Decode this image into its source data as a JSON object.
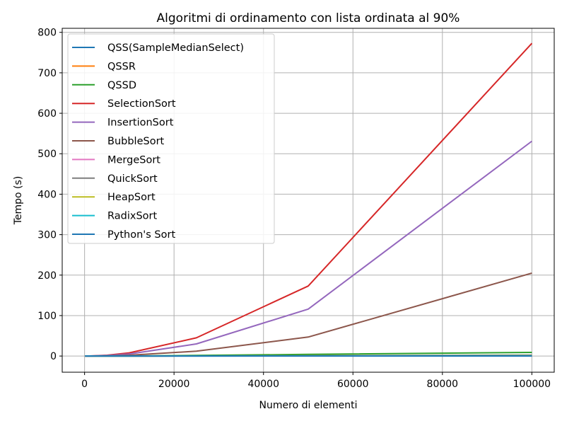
{
  "chart_data": {
    "type": "line",
    "title": "Algoritmi di ordinamento con lista ordinata al 90%",
    "xlabel": "Numero di elementi",
    "ylabel": "Tempo (s)",
    "xlim": [
      -5000,
      105000
    ],
    "ylim": [
      -40,
      810
    ],
    "xticks": [
      0,
      20000,
      40000,
      60000,
      80000,
      100000
    ],
    "yticks": [
      0,
      100,
      200,
      300,
      400,
      500,
      600,
      700,
      800
    ],
    "xtick_labels": [
      "0",
      "20000",
      "40000",
      "60000",
      "80000",
      "100000"
    ],
    "ytick_labels": [
      "0",
      "100",
      "200",
      "300",
      "400",
      "500",
      "600",
      "700",
      "800"
    ],
    "grid": true,
    "legend_position": "top-left",
    "x": [
      100,
      1000,
      5000,
      10000,
      25000,
      50000,
      100000
    ],
    "series": [
      {
        "name": "QSS(SampleMedianSelect)",
        "color": "#1f77b4",
        "values": [
          0,
          0,
          0.02,
          0.05,
          0.15,
          0.3,
          0.6
        ]
      },
      {
        "name": "QSSR",
        "color": "#ff7f0e",
        "values": [
          0,
          0.01,
          0.05,
          0.1,
          0.3,
          0.6,
          1.2
        ]
      },
      {
        "name": "QSSD",
        "color": "#2ca02c",
        "values": [
          0,
          0.01,
          0.1,
          0.3,
          1.5,
          4,
          9
        ]
      },
      {
        "name": "SelectionSort",
        "color": "#d62728",
        "values": [
          0,
          0.08,
          2,
          8,
          45,
          173,
          773
        ]
      },
      {
        "name": "InsertionSort",
        "color": "#9467bd",
        "values": [
          0,
          0.05,
          1.5,
          5,
          30,
          116,
          531
        ]
      },
      {
        "name": "BubbleSort",
        "color": "#8c564b",
        "values": [
          0,
          0.02,
          0.5,
          2,
          12,
          47,
          205
        ]
      },
      {
        "name": "MergeSort",
        "color": "#e377c2",
        "values": [
          0,
          0.005,
          0.03,
          0.06,
          0.15,
          0.3,
          0.6
        ]
      },
      {
        "name": "QuickSort",
        "color": "#7f7f7f",
        "values": [
          0,
          0.01,
          0.05,
          0.1,
          0.3,
          0.8,
          2.5
        ]
      },
      {
        "name": "HeapSort",
        "color": "#bcbd22",
        "values": [
          0,
          0.005,
          0.04,
          0.08,
          0.2,
          0.45,
          1
        ]
      },
      {
        "name": "RadixSort",
        "color": "#17becf",
        "values": [
          0,
          0.003,
          0.02,
          0.04,
          0.1,
          0.2,
          0.4
        ]
      },
      {
        "name": "Python's Sort",
        "color": "#1f77b4",
        "values": [
          0,
          0,
          0,
          0,
          0.005,
          0.01,
          0.02
        ]
      }
    ]
  }
}
